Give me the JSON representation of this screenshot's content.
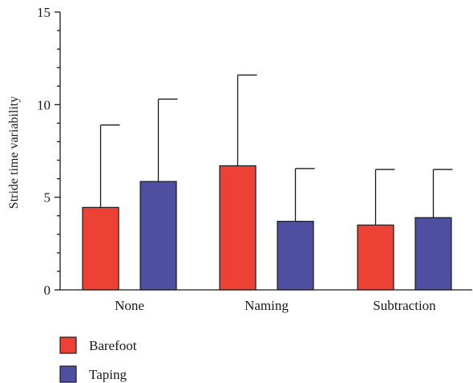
{
  "chart_data": {
    "type": "bar",
    "ylabel": "Stride time variability",
    "xlabel": "",
    "ylim": [
      0,
      15
    ],
    "yticks": [
      0,
      5,
      10,
      15
    ],
    "minor_ytick_step": 1,
    "categories": [
      "None",
      "Naming",
      "Subtraction"
    ],
    "series": [
      {
        "name": "Barefoot",
        "color": "#ee4136",
        "values": [
          4.45,
          6.7,
          3.5
        ],
        "error_upper": [
          8.9,
          11.6,
          6.5
        ]
      },
      {
        "name": "Taping",
        "color": "#4f4fa1",
        "values": [
          5.85,
          3.7,
          3.9
        ],
        "error_upper": [
          10.3,
          6.55,
          6.5
        ]
      }
    ],
    "legend_position": "bottom-left",
    "grid": false
  }
}
